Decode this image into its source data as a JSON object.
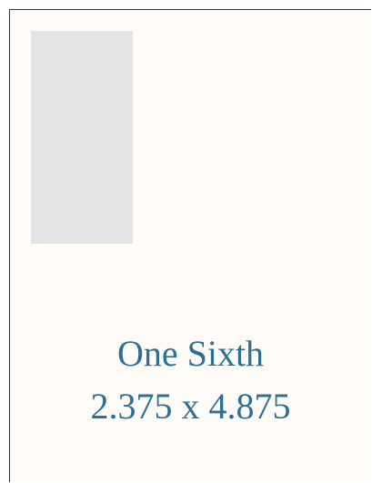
{
  "card": {
    "name": "One Sixth",
    "size": "2.375 x 4.875"
  }
}
